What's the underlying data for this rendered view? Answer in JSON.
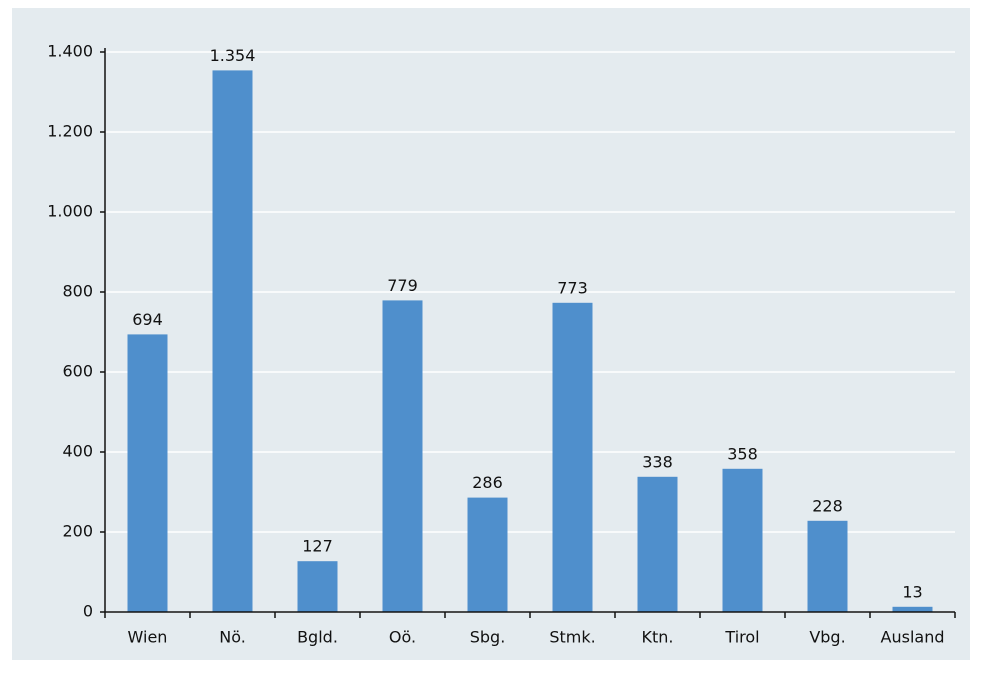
{
  "chart_data": {
    "type": "bar",
    "categories": [
      "Wien",
      "Nö.",
      "Bgld.",
      "Oö.",
      "Sbg.",
      "Stmk.",
      "Ktn.",
      "Tirol",
      "Vbg.",
      "Ausland"
    ],
    "values": [
      694,
      1354,
      127,
      779,
      286,
      773,
      338,
      358,
      228,
      13
    ],
    "value_labels": [
      "694",
      "1.354",
      "127",
      "779",
      "286",
      "773",
      "338",
      "358",
      "228",
      "13"
    ],
    "color": "#4f8fcc",
    "ylim": [
      0,
      1400
    ],
    "yticks": [
      0,
      200,
      400,
      600,
      800,
      {
        "value": 1000,
        "label": "1.000"
      },
      {
        "value": 1200,
        "label": "1.200"
      },
      {
        "value": 1400,
        "label": "1.400"
      }
    ],
    "grid": true
  }
}
